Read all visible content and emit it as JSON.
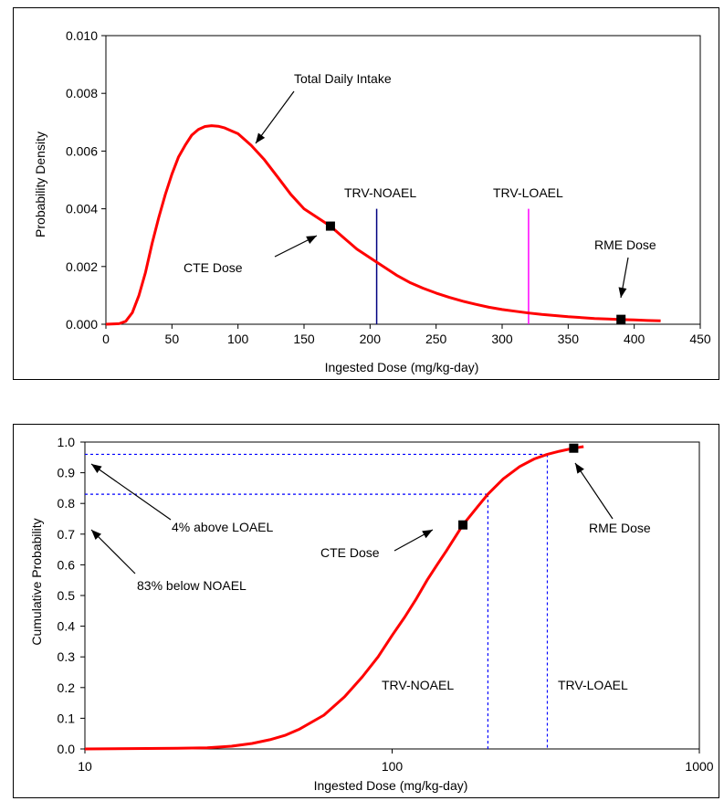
{
  "chart_data": [
    {
      "type": "line",
      "ylabel": "Probability Density",
      "xlabel": "Ingested Dose (mg/kg-day)",
      "xlim": [
        0,
        450
      ],
      "ylim": [
        0,
        0.01
      ],
      "x_ticks": [
        "0",
        "50",
        "100",
        "150",
        "200",
        "250",
        "300",
        "350",
        "400",
        "450"
      ],
      "y_ticks": [
        "0.000",
        "0.002",
        "0.004",
        "0.006",
        "0.008",
        "0.010"
      ],
      "series": [
        {
          "name": "Total Daily Intake",
          "color": "#ff0000",
          "x": [
            0,
            10,
            15,
            20,
            25,
            30,
            35,
            40,
            45,
            50,
            55,
            60,
            65,
            70,
            75,
            80,
            85,
            90,
            95,
            100,
            110,
            120,
            130,
            140,
            150,
            160,
            170,
            180,
            190,
            200,
            210,
            220,
            230,
            240,
            250,
            260,
            270,
            280,
            290,
            300,
            310,
            320,
            330,
            340,
            350,
            360,
            370,
            380,
            390,
            400,
            410,
            420
          ],
          "y": [
            0,
            2e-05,
            0.0001,
            0.0004,
            0.001,
            0.0018,
            0.0028,
            0.0037,
            0.0045,
            0.0052,
            0.0058,
            0.0062,
            0.00655,
            0.00675,
            0.00685,
            0.00688,
            0.00686,
            0.0068,
            0.0067,
            0.0066,
            0.0062,
            0.0057,
            0.0051,
            0.0045,
            0.004,
            0.0037,
            0.0034,
            0.003,
            0.0026,
            0.0023,
            0.002,
            0.0017,
            0.00145,
            0.00125,
            0.00108,
            0.00093,
            0.0008,
            0.00069,
            0.00059,
            0.00051,
            0.00045,
            0.00039,
            0.00034,
            0.0003,
            0.00026,
            0.00023,
            0.0002,
            0.00018,
            0.00016,
            0.00015,
            0.00013,
            0.00012
          ]
        }
      ],
      "markers": [
        {
          "x": 170,
          "y": 0.0034
        },
        {
          "x": 390,
          "y": 0.00017
        }
      ],
      "vlines": [
        {
          "x": 205,
          "y_top": 0.004,
          "color": "#000080",
          "label": "TRV-NOAEL"
        },
        {
          "x": 320,
          "y_top": 0.004,
          "color": "#ff00ff",
          "label": "TRV-LOAEL"
        }
      ],
      "annotations": [
        {
          "text": "Total Daily Intake"
        },
        {
          "text": "CTE Dose"
        },
        {
          "text": "RME Dose"
        }
      ]
    },
    {
      "type": "line",
      "ylabel": "Cumulative Probability",
      "xlabel": "Ingested Dose (mg/kg-day)",
      "xscale": "log",
      "xlim": [
        10,
        1000
      ],
      "ylim": [
        0,
        1.0
      ],
      "x_ticks": [
        "10",
        "100",
        "1000"
      ],
      "y_ticks": [
        "0.0",
        "0.1",
        "0.2",
        "0.3",
        "0.4",
        "0.5",
        "0.6",
        "0.7",
        "0.8",
        "0.9",
        "1.0"
      ],
      "series": [
        {
          "color": "#ff0000",
          "x": [
            10,
            20,
            25,
            30,
            35,
            40,
            45,
            50,
            60,
            70,
            80,
            90,
            100,
            110,
            120,
            130,
            140,
            150,
            170,
            190,
            205,
            230,
            260,
            290,
            320,
            350,
            390,
            420
          ],
          "y": [
            0.0,
            0.002,
            0.004,
            0.009,
            0.018,
            0.03,
            0.045,
            0.065,
            0.11,
            0.17,
            0.235,
            0.3,
            0.37,
            0.43,
            0.49,
            0.55,
            0.6,
            0.645,
            0.73,
            0.79,
            0.83,
            0.88,
            0.92,
            0.945,
            0.96,
            0.97,
            0.98,
            0.985
          ]
        }
      ],
      "markers": [
        {
          "x": 170,
          "y": 0.73
        },
        {
          "x": 390,
          "y": 0.98
        }
      ],
      "guides": [
        {
          "x": 205,
          "y": 0.83
        },
        {
          "x": 320,
          "y": 0.96
        }
      ],
      "guide_color": "#0000ff",
      "annotations": [
        {
          "text": "4% above LOAEL"
        },
        {
          "text": "83% below NOAEL"
        },
        {
          "text": "CTE Dose"
        },
        {
          "text": "RME Dose"
        },
        {
          "text": "TRV-NOAEL"
        },
        {
          "text": "TRV-LOAEL"
        }
      ]
    }
  ]
}
